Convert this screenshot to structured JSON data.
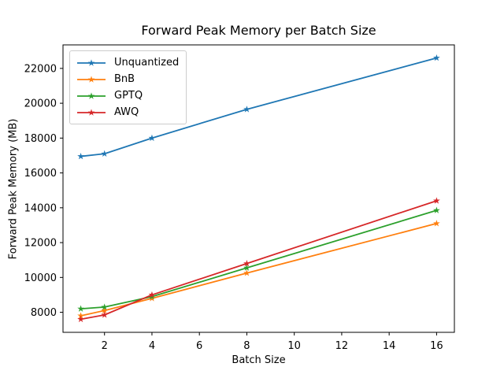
{
  "chart_data": {
    "type": "line",
    "title": "Forward Peak Memory per Batch Size",
    "xlabel": "Batch Size",
    "ylabel": "Forward Peak Memory (MB)",
    "x": [
      1,
      2,
      4,
      8,
      16
    ],
    "series": [
      {
        "name": "Unquantized",
        "color": "#1f77b4",
        "marker": "star",
        "values": [
          16950,
          17100,
          18000,
          19650,
          22600
        ]
      },
      {
        "name": "BnB",
        "color": "#ff7f0e",
        "marker": "star",
        "values": [
          7800,
          8100,
          8800,
          10250,
          13100
        ]
      },
      {
        "name": "GPTQ",
        "color": "#2ca02c",
        "marker": "star",
        "values": [
          8200,
          8300,
          8900,
          10550,
          13850
        ]
      },
      {
        "name": "AWQ",
        "color": "#d62728",
        "marker": "star",
        "values": [
          7600,
          7850,
          9000,
          10800,
          14400
        ]
      }
    ],
    "xlim": [
      0.25,
      16.75
    ],
    "ylim": [
      6850,
      23350
    ],
    "xticks": [
      2,
      4,
      6,
      8,
      10,
      12,
      14,
      16
    ],
    "yticks": [
      8000,
      10000,
      12000,
      14000,
      16000,
      18000,
      20000,
      22000
    ],
    "grid": false,
    "legend": {
      "position": "upper-left",
      "entries": [
        "Unquantized",
        "BnB",
        "GPTQ",
        "AWQ"
      ]
    },
    "axis_color": "#000000",
    "background_color": "#ffffff"
  }
}
